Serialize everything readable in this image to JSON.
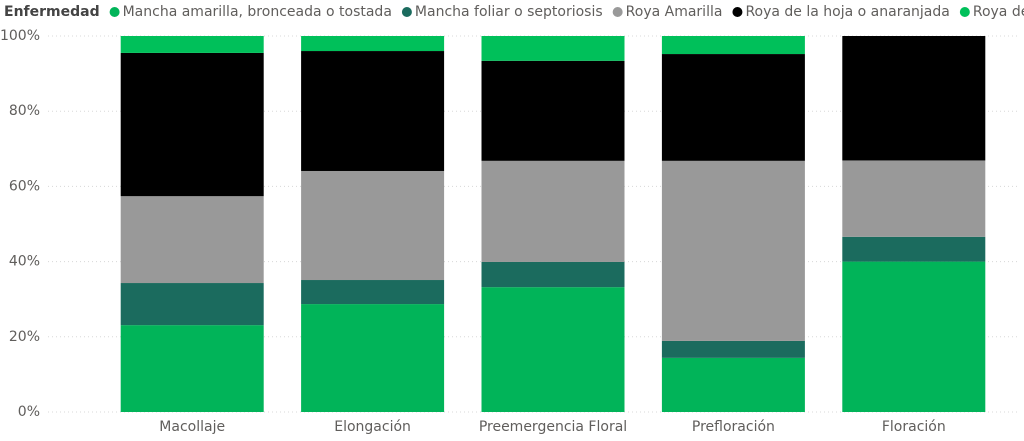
{
  "chart_data": {
    "type": "stacked_bar_100",
    "legend_title": "Enfermedad",
    "categories": [
      "Macollaje",
      "Elongación",
      "Preemergencia Floral",
      "Prefloración",
      "Floración"
    ],
    "series": [
      {
        "name": "Mancha amarilla, bronceada o tostada",
        "color": "#01b459",
        "values": [
          23.1,
          28.7,
          33.2,
          14.4,
          40.0
        ]
      },
      {
        "name": "Mancha foliar o septoriosis",
        "color": "#1b6b5e",
        "values": [
          11.2,
          6.4,
          6.7,
          4.5,
          6.6
        ]
      },
      {
        "name": "Roya Amarilla",
        "color": "#999999",
        "values": [
          23.1,
          29.0,
          26.9,
          47.9,
          20.3
        ]
      },
      {
        "name": "Roya de la hoja o anaranjada",
        "color": "#000000",
        "values": [
          38.1,
          31.9,
          26.6,
          28.4,
          33.1
        ]
      },
      {
        "name": "Roya del tallo",
        "color": "#00c05a",
        "values": [
          4.5,
          4.0,
          6.6,
          4.8,
          0
        ]
      }
    ],
    "ylim": [
      0,
      100
    ],
    "yticks": [
      {
        "value": 0,
        "label": "0%"
      },
      {
        "value": 20,
        "label": "20%"
      },
      {
        "value": 40,
        "label": "40%"
      },
      {
        "value": 60,
        "label": "60%"
      },
      {
        "value": 80,
        "label": "80%"
      },
      {
        "value": 100,
        "label": "100%"
      }
    ],
    "grid": true
  }
}
